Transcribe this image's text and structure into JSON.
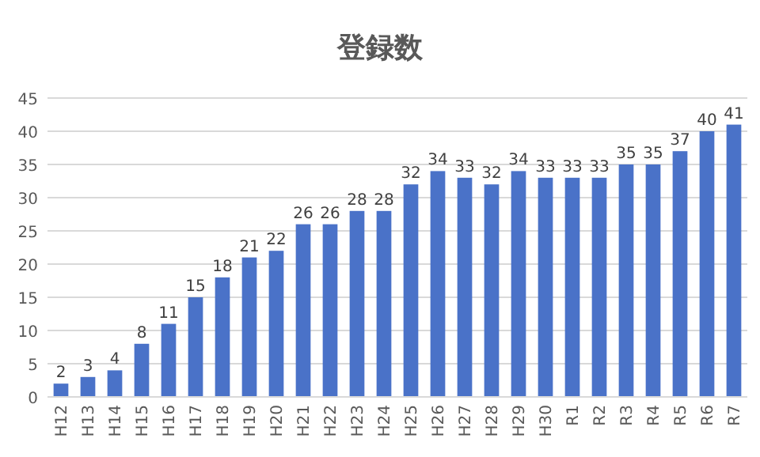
{
  "chart_data": {
    "type": "bar",
    "title": "登録数",
    "categories": [
      "H12",
      "H13",
      "H14",
      "H15",
      "H16",
      "H17",
      "H18",
      "H19",
      "H20",
      "H21",
      "H22",
      "H23",
      "H24",
      "H25",
      "H26",
      "H27",
      "H28",
      "H29",
      "H30",
      "R1",
      "R2",
      "R3",
      "R4",
      "R5",
      "R6",
      "R7"
    ],
    "values": [
      2,
      3,
      4,
      8,
      11,
      15,
      18,
      21,
      22,
      26,
      26,
      28,
      28,
      32,
      34,
      33,
      32,
      34,
      33,
      33,
      33,
      35,
      35,
      37,
      40,
      41
    ],
    "color": "#4a72c8",
    "ylim": [
      0,
      45
    ],
    "yticks": [
      0,
      5,
      10,
      15,
      20,
      25,
      30,
      35,
      40,
      45
    ],
    "grid": "y",
    "data_labels": true
  }
}
